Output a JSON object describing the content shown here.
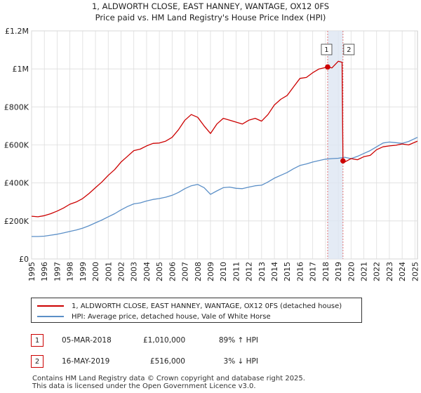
{
  "chart_data": {
    "type": "line",
    "title": "1, ALDWORTH CLOSE, EAST HANNEY, WANTAGE, OX12 0FS",
    "subtitle": "Price paid vs. HM Land Registry's House Price Index (HPI)",
    "xlim": [
      1995,
      2025.2
    ],
    "ylim": [
      0,
      1200000
    ],
    "x_ticks": [
      1995,
      1996,
      1997,
      1998,
      1999,
      2000,
      2001,
      2002,
      2003,
      2004,
      2005,
      2006,
      2007,
      2008,
      2009,
      2010,
      2011,
      2012,
      2013,
      2014,
      2015,
      2016,
      2017,
      2018,
      2019,
      2020,
      2021,
      2022,
      2023,
      2024,
      2025
    ],
    "y_ticks": [
      {
        "value": 0,
        "label": "£0"
      },
      {
        "value": 200000,
        "label": "£200K"
      },
      {
        "value": 400000,
        "label": "£400K"
      },
      {
        "value": 600000,
        "label": "£600K"
      },
      {
        "value": 800000,
        "label": "£800K"
      },
      {
        "value": 1000000,
        "label": "£1M"
      },
      {
        "value": 1200000,
        "label": "£1.2M"
      }
    ],
    "grid": true,
    "shaded_range": [
      2018.17,
      2019.37
    ],
    "series": [
      {
        "name": "1, ALDWORTH CLOSE, EAST HANNEY, WANTAGE, OX12 0FS (detached house)",
        "color": "#cc0000",
        "x": [
          1995,
          1995.5,
          1996,
          1996.5,
          1997,
          1997.5,
          1998,
          1998.5,
          1999,
          1999.5,
          2000,
          2000.5,
          2001,
          2001.5,
          2002,
          2002.5,
          2003,
          2003.5,
          2004,
          2004.5,
          2005,
          2005.5,
          2006,
          2006.5,
          2007,
          2007.5,
          2008,
          2008.5,
          2009,
          2009.5,
          2010,
          2010.5,
          2011,
          2011.5,
          2012,
          2012.5,
          2013,
          2013.5,
          2014,
          2014.5,
          2015,
          2015.5,
          2016,
          2016.5,
          2017,
          2017.5,
          2018.17,
          2018.5,
          2019,
          2019.3,
          2019.37,
          2019.5,
          2020,
          2020.5,
          2021,
          2021.5,
          2022,
          2022.5,
          2023,
          2023.5,
          2024,
          2024.5,
          2025.2
        ],
        "values": [
          225000,
          222000,
          228000,
          238000,
          252000,
          268000,
          288000,
          300000,
          318000,
          345000,
          375000,
          405000,
          440000,
          470000,
          510000,
          540000,
          570000,
          578000,
          595000,
          608000,
          610000,
          620000,
          640000,
          680000,
          730000,
          760000,
          745000,
          700000,
          660000,
          710000,
          740000,
          730000,
          720000,
          710000,
          730000,
          740000,
          725000,
          760000,
          810000,
          840000,
          860000,
          905000,
          950000,
          955000,
          980000,
          1000000,
          1010000,
          1005000,
          1040000,
          1035000,
          516000,
          510000,
          528000,
          522000,
          538000,
          545000,
          575000,
          590000,
          595000,
          598000,
          605000,
          600000,
          620000
        ]
      },
      {
        "name": "HPI: Average price, detached house, Vale of White Horse",
        "color": "#5b8fc7",
        "x": [
          1995,
          1995.5,
          1996,
          1996.5,
          1997,
          1997.5,
          1998,
          1998.5,
          1999,
          1999.5,
          2000,
          2000.5,
          2001,
          2001.5,
          2002,
          2002.5,
          2003,
          2003.5,
          2004,
          2004.5,
          2005,
          2005.5,
          2006,
          2006.5,
          2007,
          2007.5,
          2008,
          2008.5,
          2009,
          2009.5,
          2010,
          2010.5,
          2011,
          2011.5,
          2012,
          2012.5,
          2013,
          2013.5,
          2014,
          2014.5,
          2015,
          2015.5,
          2016,
          2016.5,
          2017,
          2017.5,
          2018,
          2018.5,
          2019,
          2019.5,
          2020,
          2020.5,
          2021,
          2021.5,
          2022,
          2022.5,
          2023,
          2023.5,
          2024,
          2024.5,
          2025.2
        ],
        "values": [
          118000,
          118000,
          120000,
          125000,
          130000,
          137000,
          145000,
          152000,
          162000,
          175000,
          190000,
          205000,
          222000,
          238000,
          258000,
          276000,
          290000,
          295000,
          305000,
          313000,
          318000,
          325000,
          335000,
          350000,
          370000,
          385000,
          392000,
          375000,
          340000,
          358000,
          375000,
          378000,
          372000,
          370000,
          378000,
          385000,
          388000,
          405000,
          425000,
          440000,
          455000,
          475000,
          492000,
          500000,
          510000,
          518000,
          525000,
          528000,
          530000,
          535000,
          528000,
          540000,
          555000,
          570000,
          590000,
          610000,
          615000,
          612000,
          608000,
          618000,
          640000
        ]
      }
    ],
    "transactions": [
      {
        "id": "1",
        "x": 2018.17,
        "value": 1010000,
        "date": "05-MAR-2018",
        "price": "£1,010,000",
        "hpi": "89% ↑ HPI"
      },
      {
        "id": "2",
        "x": 2019.37,
        "value": 516000,
        "date": "16-MAY-2019",
        "price": "£516,000",
        "hpi": "3% ↓ HPI"
      }
    ]
  },
  "footer": {
    "line1": "Contains HM Land Registry data © Crown copyright and database right 2025.",
    "line2": "This data is licensed under the Open Government Licence v3.0."
  }
}
